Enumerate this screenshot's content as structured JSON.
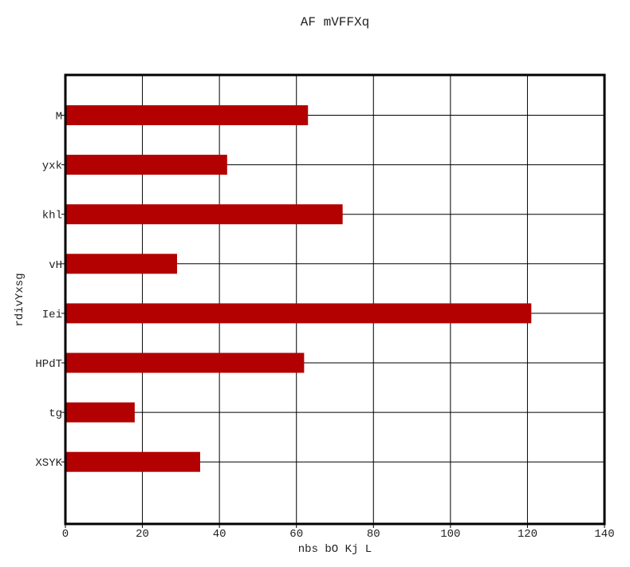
{
  "chart_data": {
    "type": "bar",
    "orientation": "horizontal",
    "title": "AF mVFFXq",
    "xlabel": "nbs bO Kj L",
    "ylabel": "rdivYxsg",
    "categories": [
      "M",
      "yxk",
      "khl",
      "vH",
      "Iei",
      "HPdT",
      "tg",
      "XSYK"
    ],
    "values": [
      63,
      42,
      72,
      29,
      121,
      62,
      18,
      35
    ],
    "xlim": [
      0,
      140
    ],
    "xticks": [
      0,
      20,
      40,
      60,
      80,
      100,
      120,
      140
    ],
    "grid": true,
    "bar_color": "#b30000",
    "legend": "none"
  }
}
